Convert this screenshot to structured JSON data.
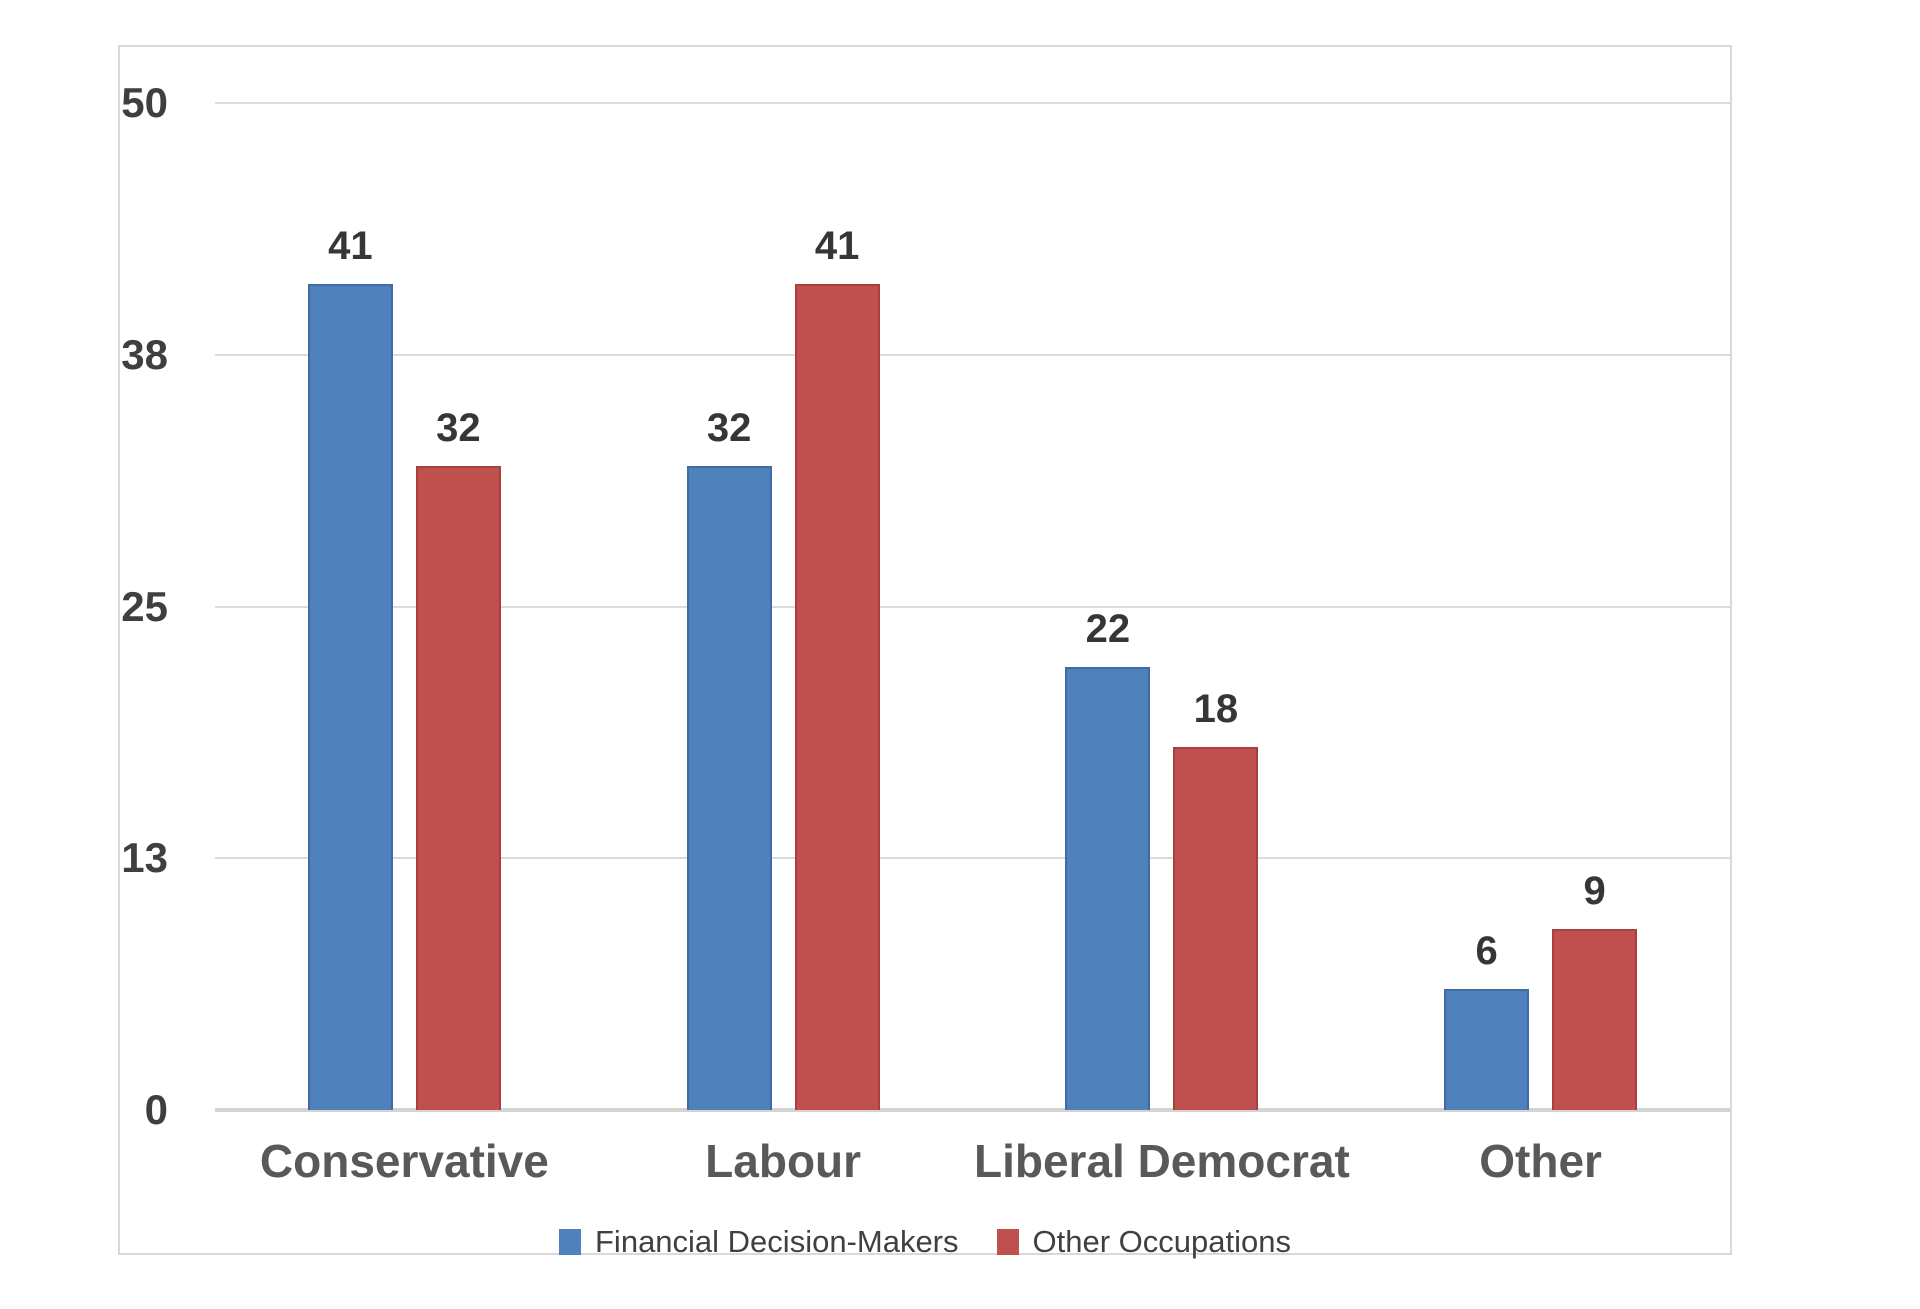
{
  "chart_data": {
    "type": "bar",
    "categories": [
      "Conservative",
      "Labour",
      "Liberal Democrat",
      "Other"
    ],
    "series": [
      {
        "name": "Financial Decision-Makers",
        "color": "#4F81BD",
        "border_color": "#3D6DA3",
        "values": [
          41,
          32,
          22,
          6
        ]
      },
      {
        "name": "Other Occupations",
        "color": "#C0504D",
        "border_color": "#A8403C",
        "values": [
          32,
          41,
          18,
          9
        ]
      }
    ],
    "y_axis": {
      "min": 0,
      "max": 50,
      "ticks": [
        {
          "label": "50",
          "value": 50
        },
        {
          "label": "38",
          "value": 37.5
        },
        {
          "label": "25",
          "value": 25
        },
        {
          "label": "13",
          "value": 12.5
        },
        {
          "label": "0",
          "value": 0
        }
      ]
    },
    "grid": true,
    "legend_position": "bottom",
    "value_labels_shown": true,
    "colors": {
      "gridline": "#DBDBDB",
      "axis_line": "#D4D4D4",
      "tick_text": "#3F3F3F",
      "category_text": "#595959",
      "legend_text": "#404040",
      "frame_border": "#D9D9D9"
    }
  }
}
